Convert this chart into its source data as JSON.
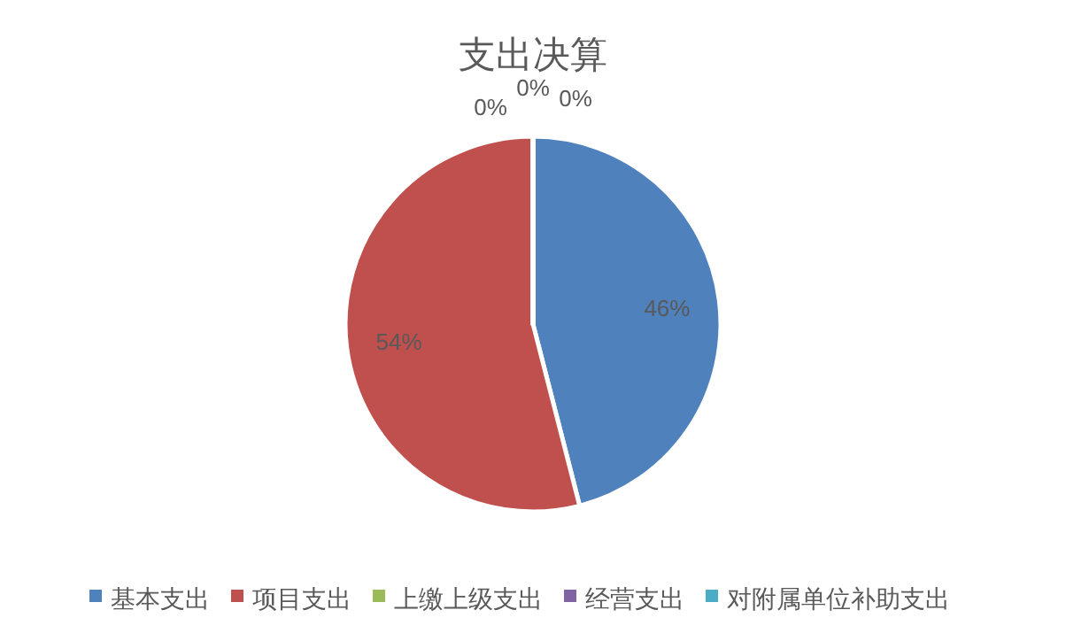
{
  "chart_data": {
    "type": "pie",
    "title": "支出决算",
    "categories": [
      "基本支出",
      "项目支出",
      "上缴上级支出",
      "经营支出",
      "对附属单位补助支出"
    ],
    "values": [
      46,
      54,
      0,
      0,
      0
    ],
    "colors": [
      "#4f81bd",
      "#c0504d",
      "#9bbb59",
      "#8064a2",
      "#4bacc6"
    ],
    "value_labels": [
      "46%",
      "54%",
      "0%",
      "0%",
      "0%"
    ],
    "legend": "bottom"
  }
}
